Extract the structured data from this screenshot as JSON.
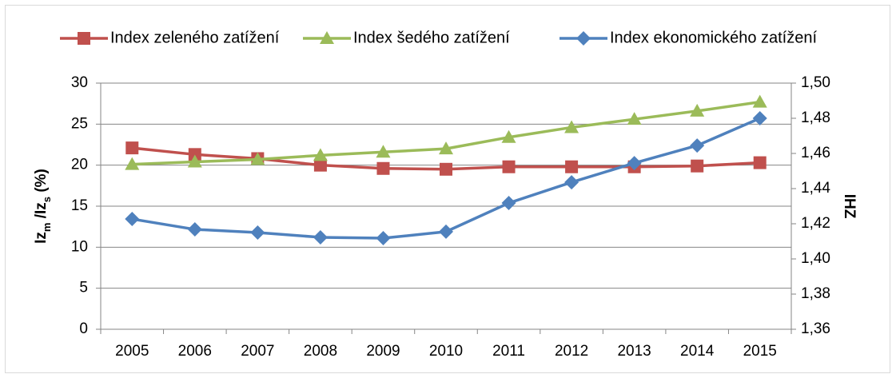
{
  "chart_data": {
    "type": "line",
    "categories": [
      "2005",
      "2006",
      "2007",
      "2008",
      "2009",
      "2010",
      "2011",
      "2012",
      "2013",
      "2014",
      "2015"
    ],
    "series": [
      {
        "name": "Index zeleného zatížení",
        "color": "#c0504d",
        "marker": "square",
        "values": [
          22.1,
          21.3,
          20.8,
          20.0,
          19.6,
          19.5,
          19.8,
          19.8,
          19.8,
          19.9,
          20.3
        ]
      },
      {
        "name": "Index šedého zatížení",
        "color": "#9bbb59",
        "marker": "triangle",
        "values": [
          20.1,
          20.4,
          20.7,
          21.2,
          21.6,
          22.0,
          23.4,
          24.6,
          25.6,
          26.6,
          27.7
        ]
      },
      {
        "name": "Index ekonomického zatížení",
        "color": "#4f81bd",
        "marker": "diamond",
        "axis": "y2",
        "values": [
          1.4227,
          1.4168,
          1.415,
          1.4123,
          1.4118,
          1.4155,
          1.4318,
          1.4436,
          1.4545,
          1.4645,
          1.48
        ]
      }
    ],
    "ylim": [
      0,
      30
    ],
    "yticks": [
      0,
      5,
      10,
      15,
      20,
      25,
      30
    ],
    "y2lim": [
      1.36,
      1.5
    ],
    "y2ticks": [
      {
        "value": 1.36,
        "label": "1,36"
      },
      {
        "value": 1.38,
        "label": "1,38"
      },
      {
        "value": 1.4,
        "label": "1,40"
      },
      {
        "value": 1.42,
        "label": "1,42"
      },
      {
        "value": 1.44,
        "label": "1,44"
      },
      {
        "value": 1.46,
        "label": "1,46"
      },
      {
        "value": 1.48,
        "label": "1,48"
      },
      {
        "value": 1.5,
        "label": "1,50"
      }
    ],
    "y_label": [
      "Iz",
      "m",
      " /Iz",
      "s",
      " (%)"
    ],
    "y2_label": "IHZ",
    "grid": true,
    "legend": "top"
  }
}
